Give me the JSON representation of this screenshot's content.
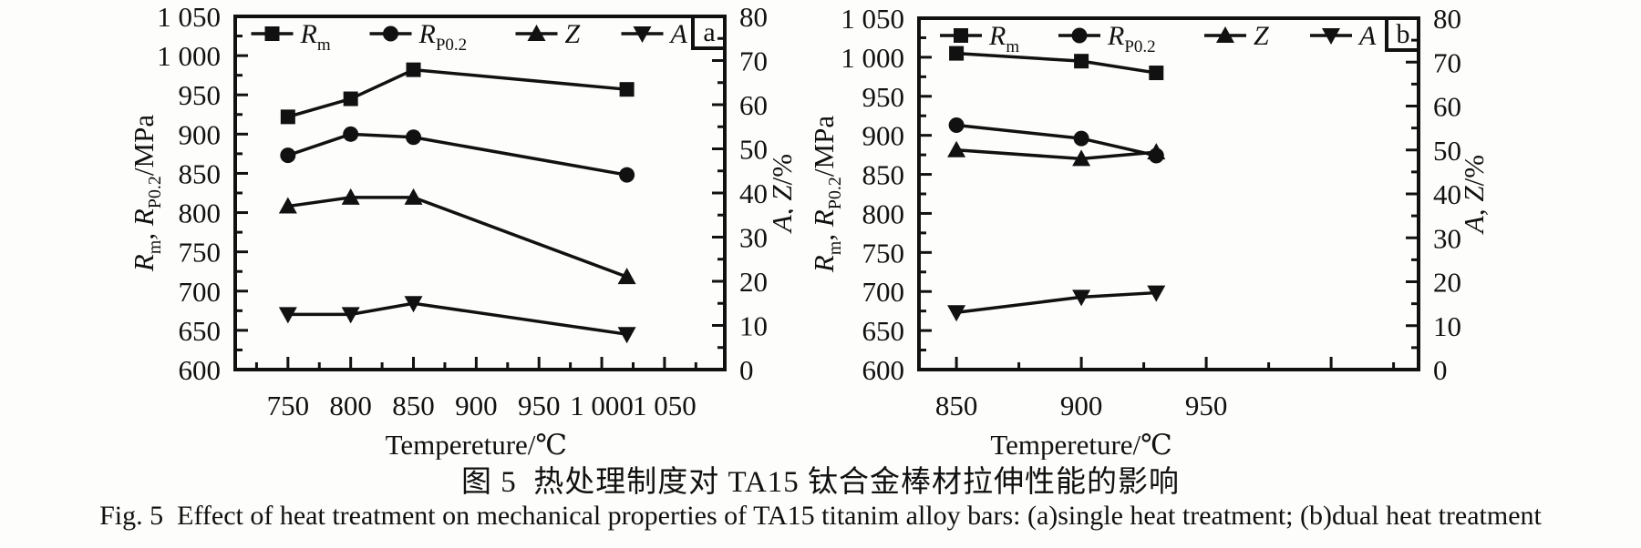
{
  "page": {
    "background": "#fdfdfc",
    "ink": "#111111"
  },
  "captions": {
    "chinese": "图 5  热处理制度对 TA15 钛合金棒材拉伸性能的影响",
    "english": "Fig. 5  Effect of heat treatment on mechanical properties of TA15 titanim alloy bars: (a)single heat treatment; (b)dual heat treatment"
  },
  "chart_data": [
    {
      "type": "line",
      "panel": "a",
      "xlabel": "Tempereture/℃",
      "ylabel_left_parts": [
        {
          "t": "R",
          "style": "italic"
        },
        {
          "t": "m",
          "style": "sub"
        },
        {
          "t": ", ",
          "style": "normal"
        },
        {
          "t": "R",
          "style": "italic"
        },
        {
          "t": "P0.2",
          "style": "sub"
        },
        {
          "t": "/MPa",
          "style": "normal"
        }
      ],
      "ylabel_right_parts": [
        {
          "t": "A",
          "style": "italic"
        },
        {
          "t": ", ",
          "style": "normal"
        },
        {
          "t": "Z",
          "style": "italic"
        },
        {
          "t": "/%",
          "style": "normal"
        }
      ],
      "x_axis": {
        "min": 708,
        "max": 1098,
        "minor_step": 25,
        "major_every": 50,
        "label_map": {
          "750": "750",
          "800": "800",
          "850": "850",
          "900": "900",
          "950": "950",
          "1000": "1 000",
          "1050": "1 050"
        }
      },
      "y_left": {
        "min": 600,
        "max": 1050,
        "minor_step": 25,
        "major_every": 50,
        "label_map": {
          "600": "600",
          "650": "650",
          "700": "700",
          "750": "750",
          "800": "800",
          "850": "850",
          "900": "900",
          "950": "950",
          "1000": "1 000",
          "1050": "1 050"
        }
      },
      "y_right": {
        "min": 0,
        "max": 80,
        "minor_step": 5,
        "major_every": 10,
        "label_map": {
          "0": "0",
          "10": "10",
          "20": "20",
          "30": "30",
          "40": "40",
          "50": "50",
          "60": "60",
          "70": "70",
          "80": "80"
        }
      },
      "x": [
        750,
        800,
        850,
        1020
      ],
      "series": [
        {
          "name": "Rm",
          "legend_main": "R",
          "legend_sub": "m",
          "marker": "square",
          "axis": "left",
          "values": [
            922,
            945,
            982,
            957
          ]
        },
        {
          "name": "RP0.2",
          "legend_main": "R",
          "legend_sub": "P0.2",
          "marker": "circle",
          "axis": "left",
          "values": [
            873,
            900,
            896,
            848
          ]
        },
        {
          "name": "Z",
          "legend_main": "Z",
          "legend_sub": "",
          "marker": "triangle-up",
          "axis": "right",
          "values": [
            37,
            39,
            39,
            21
          ]
        },
        {
          "name": "A",
          "legend_main": "A",
          "legend_sub": "",
          "marker": "triangle-down",
          "axis": "right",
          "values": [
            12.5,
            12.5,
            15,
            8
          ]
        }
      ]
    },
    {
      "type": "line",
      "panel": "b",
      "xlabel": "Tempereture/℃",
      "ylabel_left_parts": [
        {
          "t": "R",
          "style": "italic"
        },
        {
          "t": "m",
          "style": "sub"
        },
        {
          "t": ", ",
          "style": "normal"
        },
        {
          "t": "R",
          "style": "italic"
        },
        {
          "t": "P0.2",
          "style": "sub"
        },
        {
          "t": "/MPa",
          "style": "normal"
        }
      ],
      "ylabel_right_parts": [
        {
          "t": "A",
          "style": "italic"
        },
        {
          "t": ", ",
          "style": "normal"
        },
        {
          "t": "Z",
          "style": "italic"
        },
        {
          "t": "/%",
          "style": "normal"
        }
      ],
      "x_axis": {
        "min": 835,
        "max": 1035,
        "minor_step": 25,
        "major_every": 50,
        "label_map": {
          "850": "850",
          "900": "900",
          "950": "950"
        }
      },
      "y_left": {
        "min": 600,
        "max": 1050,
        "minor_step": 25,
        "major_every": 50,
        "label_map": {
          "600": "600",
          "650": "650",
          "700": "700",
          "750": "750",
          "800": "800",
          "850": "850",
          "900": "900",
          "950": "950",
          "1000": "1 000",
          "1050": "1 050"
        }
      },
      "y_right": {
        "min": 0,
        "max": 80,
        "minor_step": 5,
        "major_every": 10,
        "label_map": {
          "0": "0",
          "10": "10",
          "20": "20",
          "30": "30",
          "40": "40",
          "50": "50",
          "60": "60",
          "70": "70",
          "80": "80"
        }
      },
      "x": [
        850,
        900,
        930
      ],
      "series": [
        {
          "name": "Rm",
          "legend_main": "R",
          "legend_sub": "m",
          "marker": "square",
          "axis": "left",
          "values": [
            1005,
            995,
            980
          ]
        },
        {
          "name": "RP0.2",
          "legend_main": "R",
          "legend_sub": "P0.2",
          "marker": "circle",
          "axis": "left",
          "values": [
            913,
            896,
            874
          ]
        },
        {
          "name": "Z",
          "legend_main": "Z",
          "legend_sub": "",
          "marker": "triangle-up",
          "axis": "right",
          "values": [
            50,
            48,
            49.5
          ]
        },
        {
          "name": "A",
          "legend_main": "A",
          "legend_sub": "",
          "marker": "triangle-down",
          "axis": "right",
          "values": [
            13,
            16.5,
            17.5
          ]
        }
      ]
    }
  ]
}
